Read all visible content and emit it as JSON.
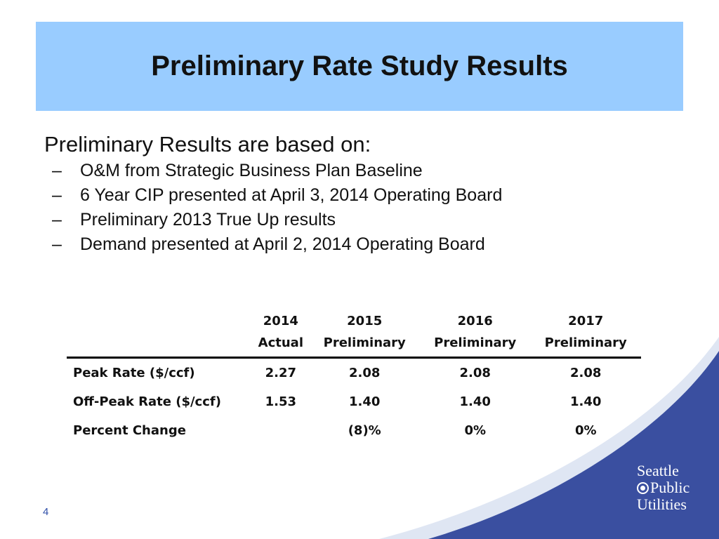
{
  "title": "Preliminary Rate Study Results",
  "intro": "Preliminary Results are based on:",
  "bullets": [
    "O&M from Strategic Business Plan Baseline",
    "6 Year CIP presented at April 3, 2014 Operating Board",
    "Preliminary 2013 True Up results",
    "Demand presented at April 2, 2014 Operating Board"
  ],
  "table": {
    "headers": [
      {
        "year": "2014",
        "sub": "Actual"
      },
      {
        "year": "2015",
        "sub": "Preliminary"
      },
      {
        "year": "2016",
        "sub": "Preliminary"
      },
      {
        "year": "2017",
        "sub": "Preliminary"
      }
    ],
    "rows": [
      {
        "label": "Peak Rate ($/ccf)",
        "values": [
          "2.27",
          "2.08",
          "2.08",
          "2.08"
        ]
      },
      {
        "label": "Off-Peak Rate ($/ccf)",
        "values": [
          "1.53",
          "1.40",
          "1.40",
          "1.40"
        ]
      },
      {
        "label": "Percent Change",
        "values": [
          "",
          "(8)%",
          "0%",
          "0%"
        ]
      }
    ]
  },
  "logo": {
    "line1": "Seattle",
    "line2": "Public",
    "line3": "Utilities"
  },
  "page_number": "4",
  "colors": {
    "title_bar": "#99ccff",
    "swoosh": "#3a4fa0",
    "page_number": "#2f4fa8"
  }
}
